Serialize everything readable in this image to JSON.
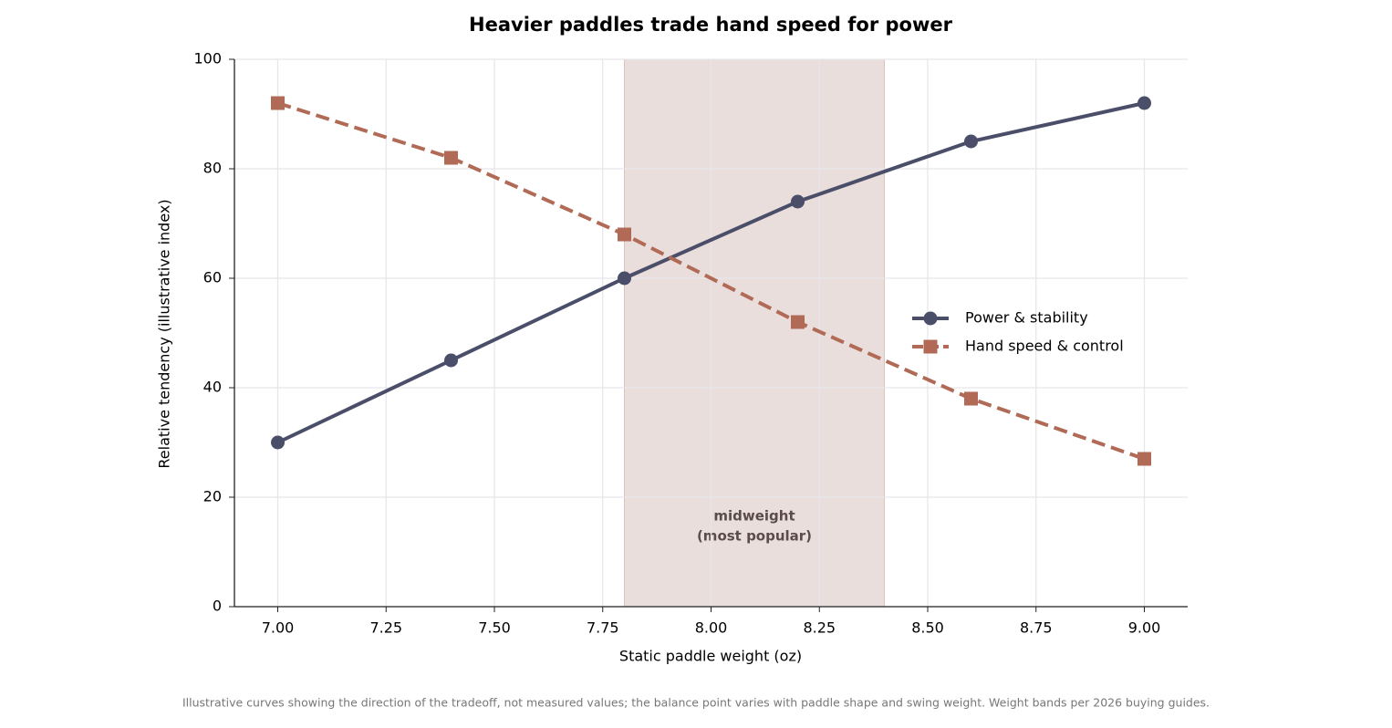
{
  "chart_data": {
    "type": "line",
    "title": "Heavier paddles trade hand speed for power",
    "x_label": "Static paddle weight (oz)",
    "y_label": "Relative tendency (illustrative index)",
    "x": [
      7.0,
      7.4,
      7.8,
      8.2,
      8.6,
      9.0
    ],
    "series": [
      {
        "name": "Power & stability",
        "color": "#4a4e69",
        "marker": "circle",
        "linestyle": "solid",
        "values": [
          30,
          45,
          60,
          74,
          85,
          92
        ]
      },
      {
        "name": "Hand speed & control",
        "color": "#b06a56",
        "marker": "square",
        "linestyle": "dashed",
        "values": [
          92,
          82,
          68,
          52,
          38,
          27
        ]
      }
    ],
    "xlim": [
      6.9,
      9.1
    ],
    "ylim": [
      0,
      100
    ],
    "xticks": [
      {
        "value": 7.0,
        "label": "7.00"
      },
      {
        "value": 7.25,
        "label": "7.25"
      },
      {
        "value": 7.5,
        "label": "7.50"
      },
      {
        "value": 7.75,
        "label": "7.75"
      },
      {
        "value": 8.0,
        "label": "8.00"
      },
      {
        "value": 8.25,
        "label": "8.25"
      },
      {
        "value": 8.5,
        "label": "8.50"
      },
      {
        "value": 8.75,
        "label": "8.75"
      },
      {
        "value": 9.0,
        "label": "9.00"
      }
    ],
    "yticks": [
      0,
      20,
      40,
      60,
      80,
      100
    ],
    "grid": true,
    "legend": "right",
    "band": {
      "from": 7.8,
      "to": 8.4,
      "color": "#d9c3bf",
      "label_lines": [
        "midweight",
        "(most popular)"
      ]
    },
    "footnote": "Illustrative curves showing the direction of the tradeoff, not measured values; the balance point varies with paddle shape and swing weight. Weight bands per 2026 buying guides."
  }
}
